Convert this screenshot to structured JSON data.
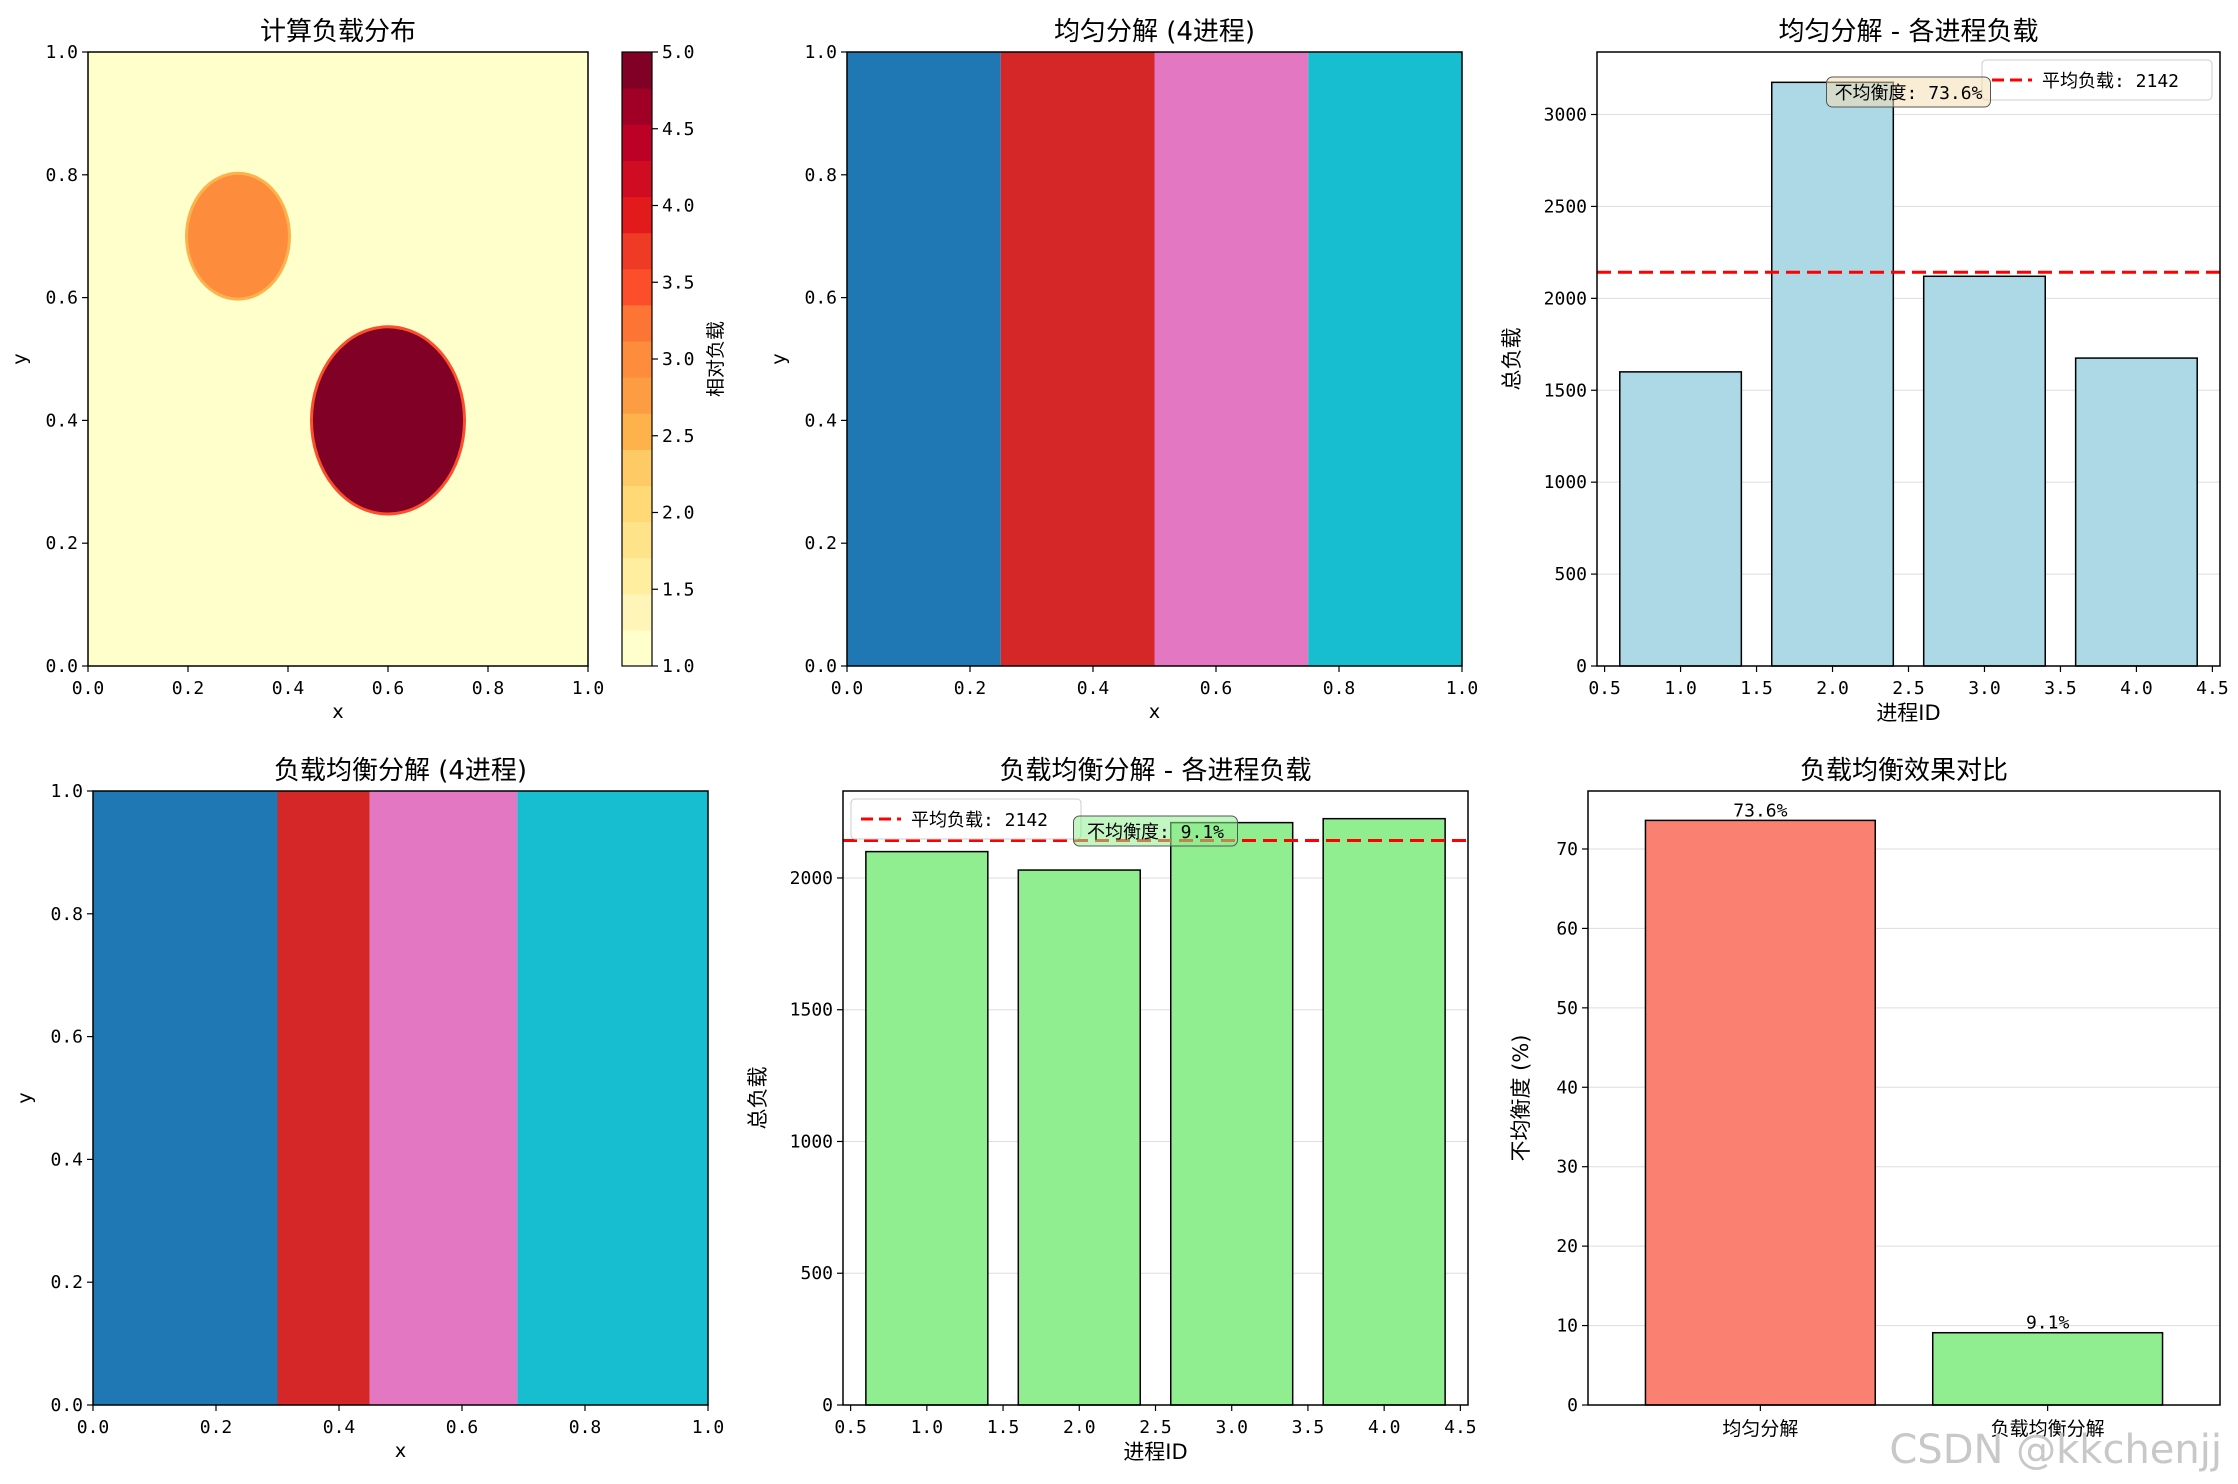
{
  "watermark": "CSDN @kkchenjj",
  "chart_data": [
    {
      "id": "p1",
      "type": "heatmap",
      "title": "计算负载分布",
      "xlabel": "x",
      "ylabel": "y",
      "xlim": [
        0,
        1
      ],
      "ylim": [
        0,
        1
      ],
      "xticks": [
        "0.0",
        "0.2",
        "0.4",
        "0.6",
        "0.8",
        "1.0"
      ],
      "yticks": [
        "0.0",
        "0.2",
        "0.4",
        "0.6",
        "0.8",
        "1.0"
      ],
      "background_value": 1.0,
      "regions": [
        {
          "shape": "circle",
          "cx": 0.3,
          "cy": 0.7,
          "r": 0.1,
          "value": 3.0
        },
        {
          "shape": "circle",
          "cx": 0.6,
          "cy": 0.4,
          "r": 0.15,
          "value": 5.0
        }
      ],
      "colorbar": {
        "label": "相对负载",
        "range": [
          1.0,
          5.0
        ],
        "ticks": [
          "1.0",
          "1.5",
          "2.0",
          "2.5",
          "3.0",
          "3.5",
          "4.0",
          "4.5",
          "5.0"
        ],
        "levels": [
          "#ffffcc",
          "#fff5b8",
          "#ffeda0",
          "#fee38b",
          "#fed976",
          "#feca66",
          "#feb24c",
          "#fd9d43",
          "#fd8d3c",
          "#fc7535",
          "#fc4e2a",
          "#ef3b25",
          "#e31a1c",
          "#cf0c21",
          "#bd0026",
          "#a10026",
          "#800026"
        ]
      }
    },
    {
      "id": "p2",
      "type": "partition",
      "title": "均匀分解 (4进程)",
      "xlabel": "x",
      "ylabel": "y",
      "xlim": [
        0,
        1
      ],
      "ylim": [
        0,
        1
      ],
      "xticks": [
        "0.0",
        "0.2",
        "0.4",
        "0.6",
        "0.8",
        "1.0"
      ],
      "yticks": [
        "0.0",
        "0.2",
        "0.4",
        "0.6",
        "0.8",
        "1.0"
      ],
      "boundaries": [
        0.0,
        0.25,
        0.5,
        0.75,
        1.0
      ],
      "colors": [
        "#1f77b4",
        "#d62728",
        "#e377c2",
        "#17becf"
      ]
    },
    {
      "id": "p3",
      "type": "bar",
      "title": "均匀分解 - 各进程负载",
      "xlabel": "进程ID",
      "ylabel": "总负载",
      "x": [
        1,
        2,
        3,
        4
      ],
      "values": [
        1600,
        3175,
        2120,
        1675
      ],
      "xlim": [
        0.45,
        4.55
      ],
      "ylim": [
        0,
        3340
      ],
      "xticks": [
        "0.5",
        "1.0",
        "1.5",
        "2.0",
        "2.5",
        "3.0",
        "3.5",
        "4.0",
        "4.5"
      ],
      "yticks": [
        "0",
        "500",
        "1000",
        "1500",
        "2000",
        "2500",
        "3000"
      ],
      "bar_color": "#add8e6",
      "mean_value": 2142,
      "legend": "平均负载: 2142",
      "legend_position": "top-right",
      "annotation": "不均衡度: 73.6%",
      "grid": "y"
    },
    {
      "id": "p4",
      "type": "partition",
      "title": "负载均衡分解 (4进程)",
      "xlabel": "x",
      "ylabel": "y",
      "xlim": [
        0,
        1
      ],
      "ylim": [
        0,
        1
      ],
      "xticks": [
        "0.0",
        "0.2",
        "0.4",
        "0.6",
        "0.8",
        "1.0"
      ],
      "yticks": [
        "0.0",
        "0.2",
        "0.4",
        "0.6",
        "0.8",
        "1.0"
      ],
      "boundaries": [
        0.0,
        0.3,
        0.45,
        0.69,
        1.0
      ],
      "colors": [
        "#1f77b4",
        "#d62728",
        "#e377c2",
        "#17becf"
      ]
    },
    {
      "id": "p5",
      "type": "bar",
      "title": "负载均衡分解 - 各进程负载",
      "xlabel": "进程ID",
      "ylabel": "总负载",
      "x": [
        1,
        2,
        3,
        4
      ],
      "values": [
        2100,
        2030,
        2210,
        2225
      ],
      "xlim": [
        0.45,
        4.55
      ],
      "ylim": [
        0,
        2330
      ],
      "xticks": [
        "0.5",
        "1.0",
        "1.5",
        "2.0",
        "2.5",
        "3.0",
        "3.5",
        "4.0",
        "4.5"
      ],
      "yticks": [
        "0",
        "500",
        "1000",
        "1500",
        "2000"
      ],
      "bar_color": "#90ee90",
      "mean_value": 2142,
      "legend": "平均负载: 2142",
      "legend_position": "top-left",
      "annotation": "不均衡度: 9.1%",
      "grid": "y"
    },
    {
      "id": "p6",
      "type": "bar",
      "title": "负载均衡效果对比",
      "xlabel": "",
      "ylabel": "不均衡度 (%)",
      "categories": [
        "均匀分解",
        "负载均衡分解"
      ],
      "values": [
        73.6,
        9.1
      ],
      "value_labels": [
        "73.6%",
        "9.1%"
      ],
      "colors": [
        "#fa8072",
        "#90ee90"
      ],
      "ylim": [
        0,
        77.3
      ],
      "yticks": [
        "0",
        "10",
        "20",
        "30",
        "40",
        "50",
        "60",
        "70"
      ],
      "grid": "y"
    }
  ]
}
